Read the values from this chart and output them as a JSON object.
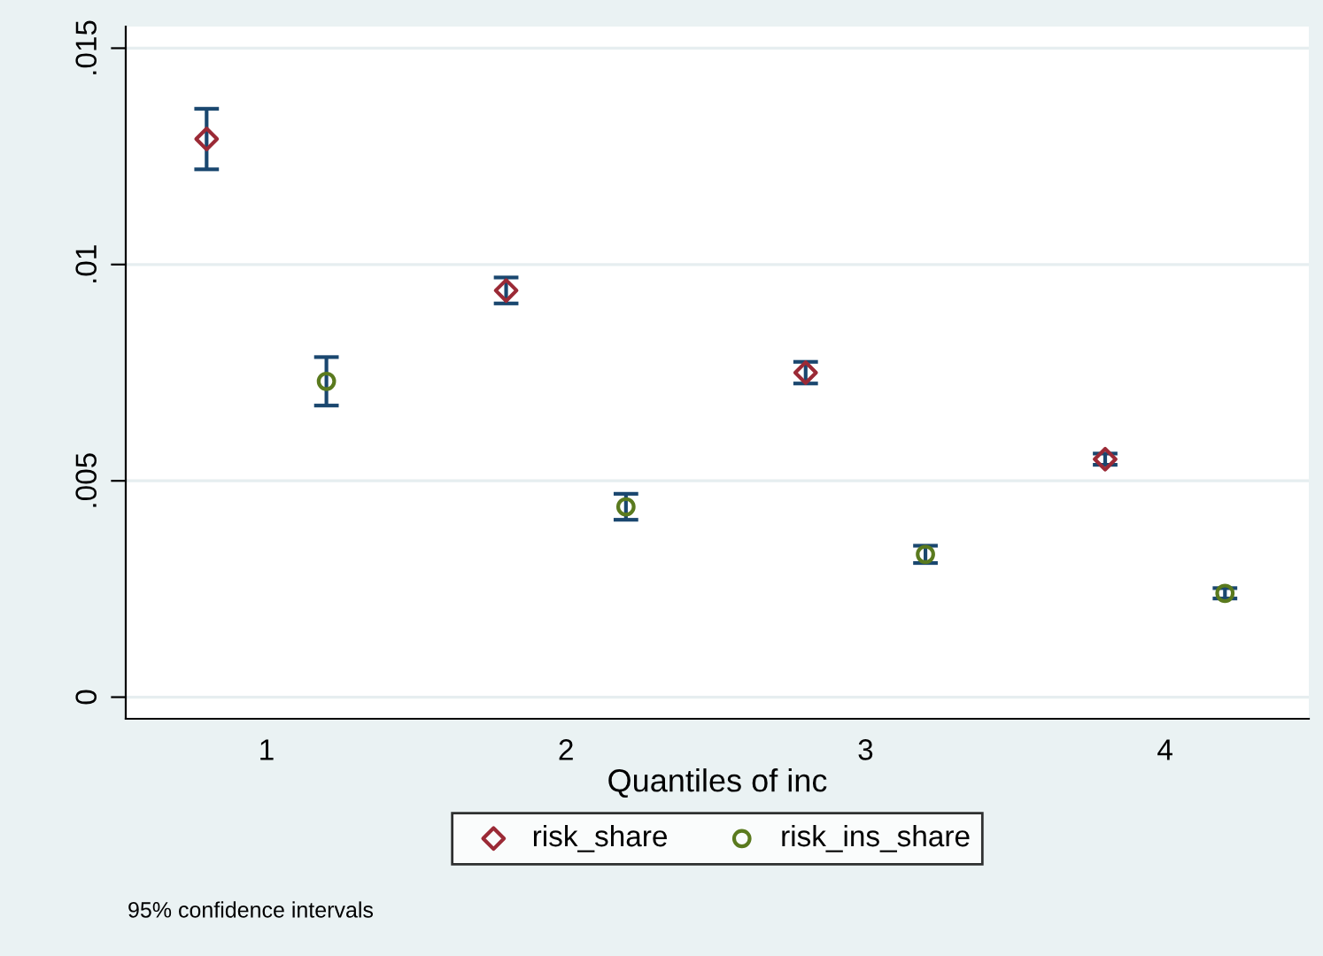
{
  "chart_data": {
    "type": "scatter",
    "xlabel": "Quantiles of inc",
    "series": [
      {
        "name": "risk_share",
        "color": "#9b2a36",
        "marker": "diamond",
        "x": [
          0.8,
          1.8,
          2.8,
          3.8
        ],
        "values": [
          0.0129,
          0.0094,
          0.0075,
          0.0055
        ],
        "errors": [
          0.0007,
          0.0003,
          0.00025,
          0.00013
        ]
      },
      {
        "name": "risk_ins_share",
        "color": "#5a7a1e",
        "marker": "circle",
        "x": [
          1.2,
          2.2,
          3.2,
          4.2
        ],
        "values": [
          0.0073,
          0.0044,
          0.0033,
          0.0024
        ],
        "errors": [
          0.00056,
          0.0003,
          0.0002,
          0.00012
        ]
      }
    ],
    "xlim": [
      0.53,
      4.48
    ],
    "xticks": [
      1,
      2,
      3,
      4
    ],
    "ylim": [
      -0.0005,
      0.0155
    ],
    "yticks": [
      {
        "value": 0,
        "label": "0"
      },
      {
        "value": 0.005,
        "label": ".005"
      },
      {
        "value": 0.01,
        "label": ".01"
      },
      {
        "value": 0.015,
        "label": ".015"
      }
    ],
    "grid": "y",
    "legend": "bottom",
    "annotations": [
      "95% confidence intervals"
    ]
  }
}
